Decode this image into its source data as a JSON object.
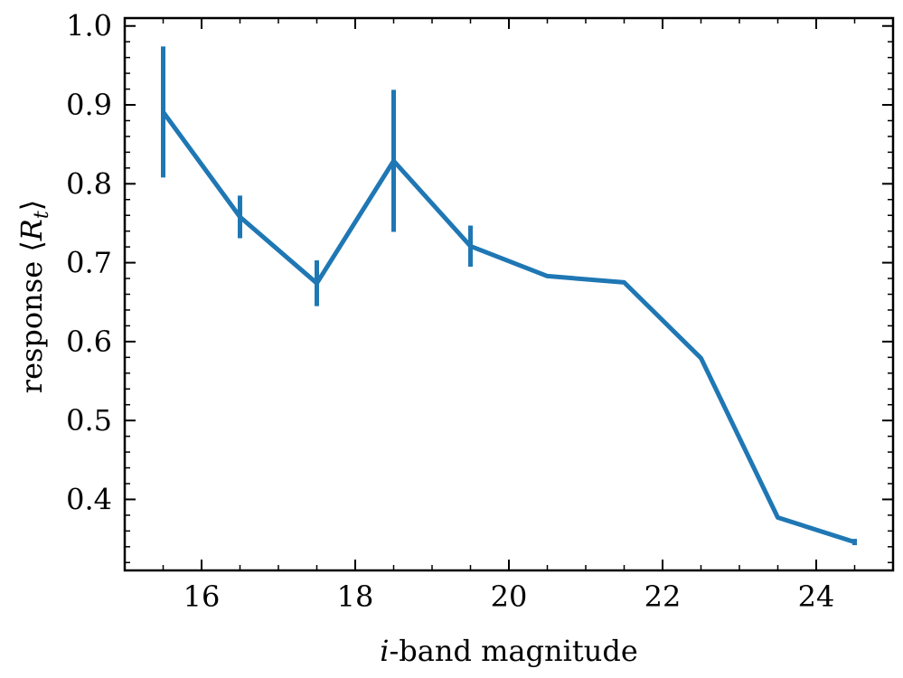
{
  "chart_data": {
    "type": "line",
    "title": "",
    "xlabel_prefix": "i",
    "xlabel_suffix": "-band magnitude",
    "ylabel_prefix": "response ⟨",
    "ylabel_var": "R",
    "ylabel_sub": "t",
    "ylabel_suffix": "⟩",
    "xlim": [
      15.0,
      25.0
    ],
    "ylim": [
      0.31,
      1.01
    ],
    "xticks": [
      16,
      18,
      20,
      22,
      24
    ],
    "xtick_labels": [
      "16",
      "18",
      "20",
      "22",
      "24"
    ],
    "xminor_step": 0.5,
    "yticks": [
      0.4,
      0.5,
      0.6,
      0.7,
      0.8,
      0.9,
      1.0
    ],
    "ytick_labels": [
      "0.4",
      "0.5",
      "0.6",
      "0.7",
      "0.8",
      "0.9",
      "1.0"
    ],
    "yminor_step": 0.02,
    "grid": false,
    "color": "#1f77b4",
    "series": [
      {
        "x": [
          15.5,
          16.5,
          17.5,
          18.5,
          19.5,
          20.5,
          21.5,
          22.5,
          23.5,
          24.5
        ],
        "y": [
          0.891,
          0.758,
          0.674,
          0.829,
          0.721,
          0.683,
          0.675,
          0.579,
          0.377,
          0.346
        ],
        "yerr": [
          0.083,
          0.027,
          0.029,
          0.09,
          0.026,
          0.0,
          0.0,
          0.0,
          0.0,
          0.004
        ]
      }
    ]
  }
}
